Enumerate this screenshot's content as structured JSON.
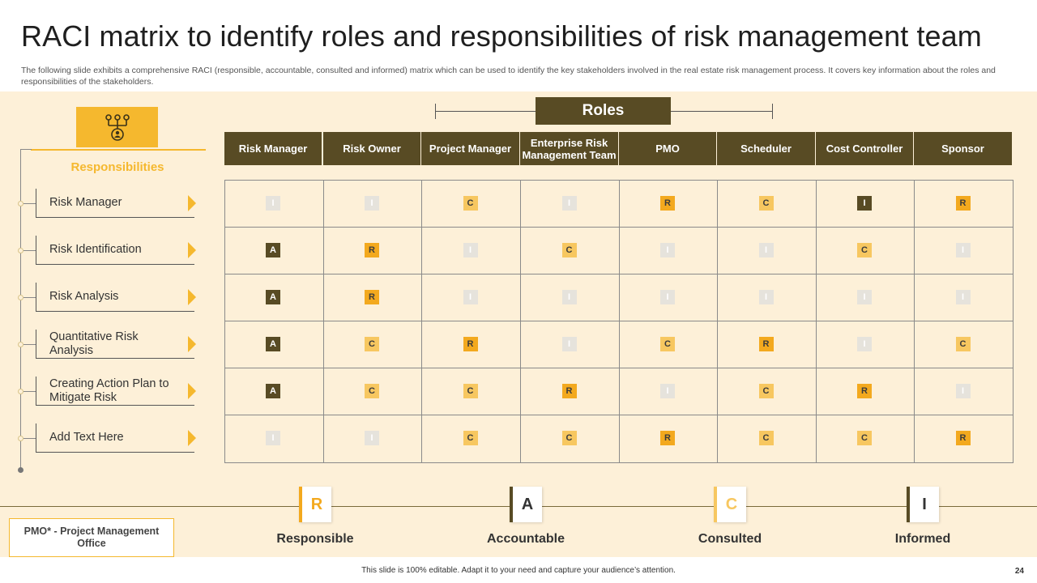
{
  "title": "RACI matrix to identify roles and responsibilities of risk management team",
  "subtitle": "The following slide exhibits a comprehensive RACI (responsible, accountable, consulted and informed) matrix which can be used to identify the key stakeholders involved in the real estate risk management process. It covers key information about the roles and responsibilities of the stakeholders.",
  "roles_label": "Roles",
  "responsibilities_label": "Responsibilities",
  "columns": [
    "Risk Manager",
    "Risk Owner",
    "Project Manager",
    "Enterprise Risk Management Team",
    "PMO",
    "Scheduler",
    "Cost Controller",
    "Sponsor"
  ],
  "rows": [
    {
      "label": "Risk Manager",
      "values": [
        "I",
        "I",
        "C",
        "I",
        "R",
        "C",
        "I*",
        "R"
      ]
    },
    {
      "label": "Risk Identification",
      "values": [
        "A",
        "R",
        "I",
        "C",
        "I",
        "I",
        "C",
        "I"
      ]
    },
    {
      "label": "Risk Analysis",
      "values": [
        "A",
        "R",
        "I",
        "I",
        "I",
        "I",
        "I",
        "I"
      ]
    },
    {
      "label": "Quantitative Risk Analysis",
      "values": [
        "A",
        "C",
        "R",
        "I",
        "C",
        "R",
        "I",
        "C"
      ]
    },
    {
      "label": "Creating Action Plan to Mitigate Risk",
      "values": [
        "A",
        "C",
        "C",
        "R",
        "I",
        "C",
        "R",
        "I"
      ]
    },
    {
      "label": "Add Text Here",
      "values": [
        "I",
        "I",
        "C",
        "C",
        "R",
        "C",
        "C",
        "R"
      ]
    }
  ],
  "legend": [
    {
      "letter": "R",
      "label": "Responsible",
      "color": "#f3a91e"
    },
    {
      "letter": "A",
      "label": "Accountable",
      "color": "#584b24"
    },
    {
      "letter": "C",
      "label": "Consulted",
      "color": "#f7c760"
    },
    {
      "letter": "I",
      "label": "Informed",
      "color": "#584b24"
    }
  ],
  "pmo_note": "PMO* - Project Management Office",
  "footer": "This slide is 100% editable. Adapt it to your need and capture your audience’s attention.",
  "page_number": "24",
  "icon": "stakeholders-org-icon"
}
